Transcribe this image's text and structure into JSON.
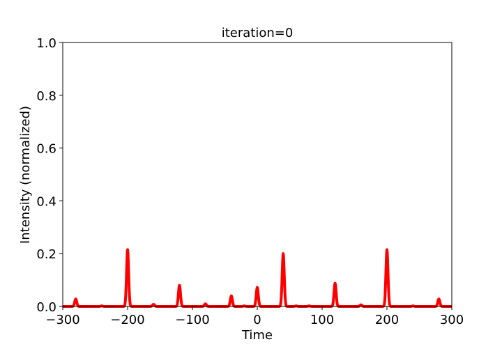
{
  "chart_data": {
    "type": "line",
    "title": "iteration=0",
    "xlabel": "Time",
    "ylabel": "Intensity (normalized)",
    "xlim": [
      -300,
      300
    ],
    "ylim": [
      0,
      1.0
    ],
    "xticks": [
      -300,
      -200,
      -100,
      0,
      100,
      200,
      300
    ],
    "xtick_labels": [
      "−300",
      "−200",
      "−100",
      "0",
      "100",
      "200",
      "300"
    ],
    "yticks": [
      0,
      0.2,
      0.4,
      0.6,
      0.8,
      1.0
    ],
    "ytick_labels": [
      "0.0",
      "0.2",
      "0.4",
      "0.6",
      "0.8",
      "1.0"
    ],
    "grid": false,
    "series": [
      {
        "color": "#ff0000",
        "peaks": [
          {
            "x": -280,
            "y": 0.028
          },
          {
            "x": -240,
            "y": 0.002
          },
          {
            "x": -200,
            "y": 0.215
          },
          {
            "x": -160,
            "y": 0.008
          },
          {
            "x": -120,
            "y": 0.08
          },
          {
            "x": -80,
            "y": 0.01
          },
          {
            "x": -40,
            "y": 0.04
          },
          {
            "x": -20,
            "y": 0.002
          },
          {
            "x": 0,
            "y": 0.072
          },
          {
            "x": 40,
            "y": 0.2
          },
          {
            "x": 60,
            "y": 0.002
          },
          {
            "x": 80,
            "y": 0.002
          },
          {
            "x": 120,
            "y": 0.088
          },
          {
            "x": 160,
            "y": 0.006
          },
          {
            "x": 200,
            "y": 0.215
          },
          {
            "x": 240,
            "y": 0.002
          },
          {
            "x": 280,
            "y": 0.028
          }
        ]
      }
    ]
  }
}
